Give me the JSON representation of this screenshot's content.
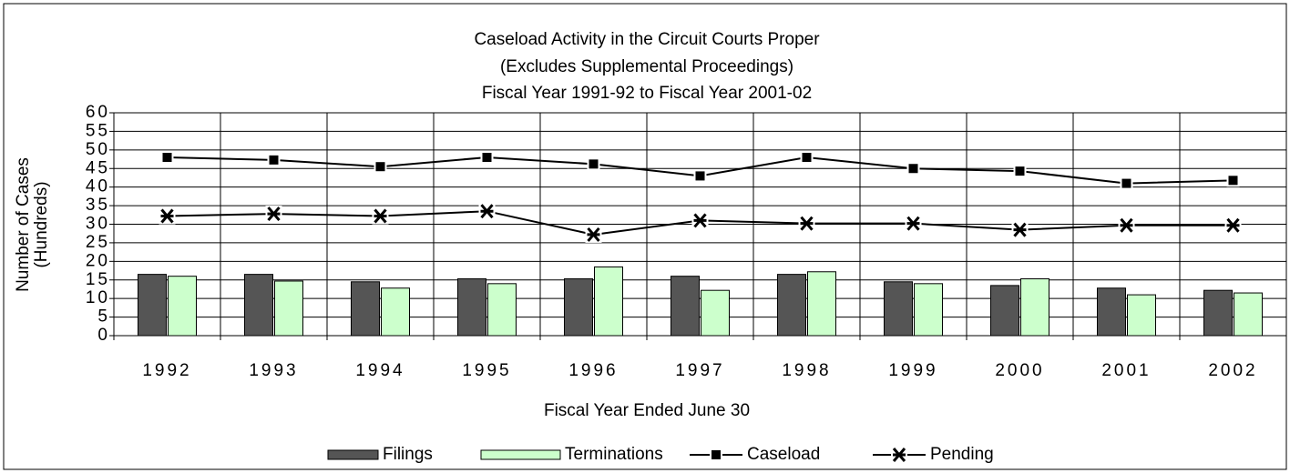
{
  "chart_data": {
    "type": "bar_line",
    "title": [
      "Caseload Activity in the Circuit Courts Proper",
      "(Excludes Supplemental Proceedings)",
      "Fiscal Year 1991-92 to Fiscal Year 2001-02"
    ],
    "y_label": [
      "Number of Cases",
      "(Hundreds)"
    ],
    "x_label": "Fiscal Year Ended June 30",
    "categories": [
      "1992",
      "1993",
      "1994",
      "1995",
      "1996",
      "1997",
      "1998",
      "1999",
      "2000",
      "2001",
      "2002"
    ],
    "series": [
      {
        "name": "Filings",
        "kind": "bar",
        "color": "#555555",
        "values": [
          16.5,
          16.5,
          14.5,
          15.3,
          15.3,
          16,
          16.5,
          14.5,
          13.5,
          12.8,
          12.2
        ]
      },
      {
        "name": "Terminations",
        "kind": "bar",
        "color": "#ccffcc",
        "values": [
          16,
          14.7,
          12.8,
          14,
          18.5,
          12.2,
          17.2,
          14,
          15.3,
          11,
          11.5
        ]
      },
      {
        "name": "Caseload",
        "kind": "line",
        "marker": "square",
        "color": "#000000",
        "values": [
          48,
          47.3,
          45.5,
          48,
          46.2,
          43,
          48,
          45,
          44.3,
          41,
          41.8
        ]
      },
      {
        "name": "Pending",
        "kind": "line",
        "marker": "star",
        "color": "#000000",
        "values": [
          32.2,
          32.8,
          32.2,
          33.5,
          27.2,
          31,
          30.2,
          30.2,
          28.5,
          29.7,
          29.7
        ]
      }
    ],
    "ylim": [
      0,
      60
    ],
    "yticks": [
      0,
      5,
      10,
      15,
      20,
      25,
      30,
      35,
      40,
      45,
      50,
      55,
      60
    ],
    "grid": true,
    "legend": "bottom"
  }
}
